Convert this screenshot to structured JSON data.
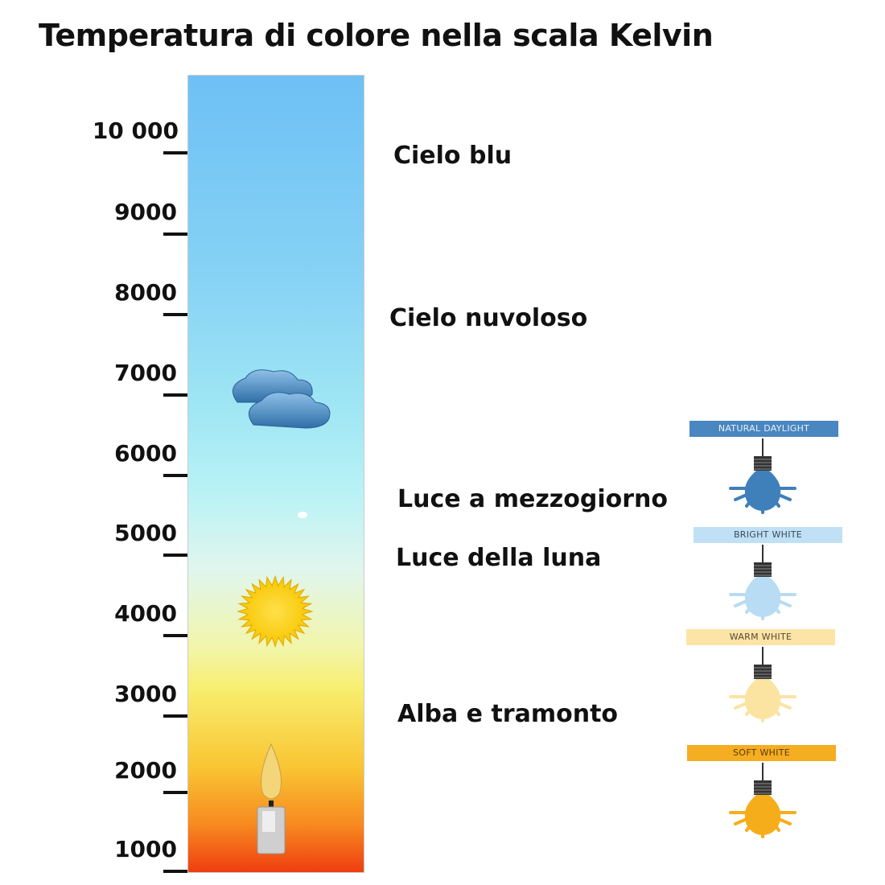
{
  "title": "Temperatura di colore nella scala Kelvin",
  "scale": {
    "unit": "K",
    "ticks": [
      "10 000",
      "9000",
      "8000",
      "7000",
      "6000",
      "5000",
      "4000",
      "3000",
      "2000",
      "1000"
    ]
  },
  "descriptions": [
    "Cielo blu",
    "Cielo nuvoloso",
    "Luce a mezzogiorno",
    "Luce della luna",
    "Alba e tramonto"
  ],
  "icons": [
    "cloud-icon",
    "sun-icon",
    "candle-icon"
  ],
  "bulbs": [
    {
      "label": "NATURAL DAYLIGHT",
      "color": "#3f7fba",
      "band": "#4a86bf",
      "text": "#e6f0f8"
    },
    {
      "label": "BRIGHT WHITE",
      "color": "#b7dcf3",
      "band": "#bfe0f5",
      "text": "#3a4a5a"
    },
    {
      "label": "WARM WHITE",
      "color": "#fbe3a2",
      "band": "#fbe4a6",
      "text": "#5a4a30"
    },
    {
      "label": "SOFT WHITE",
      "color": "#f6ad1c",
      "band": "#f5ad22",
      "text": "#5a3a10"
    }
  ]
}
